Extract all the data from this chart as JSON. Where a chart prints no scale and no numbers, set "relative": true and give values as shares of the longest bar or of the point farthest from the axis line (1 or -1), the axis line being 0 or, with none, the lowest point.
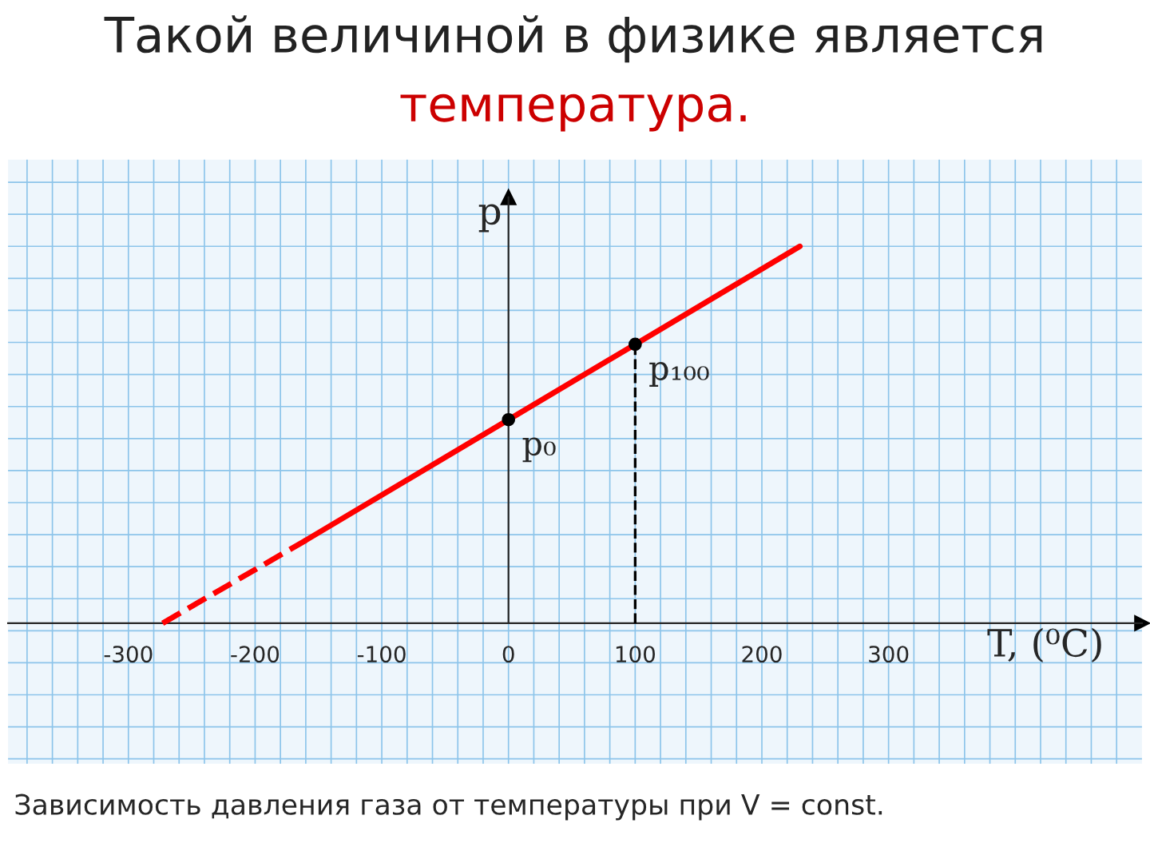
{
  "chart_data": {
    "type": "line",
    "title": "Такой величиной в физике является",
    "subtitle": "температура.",
    "xlabel": "T, (⁰C)",
    "ylabel": "p",
    "relative": true,
    "xlim": [
      -395,
      500
    ],
    "xticks": [
      -300,
      -200,
      -100,
      0,
      100,
      200,
      300
    ],
    "tick_labels": "x",
    "grid": true,
    "series": [
      {
        "type": "line",
        "x": [
          -273,
          -160
        ],
        "values": [
          0,
          0.22
        ],
        "color": "#ff0000",
        "line_style": "dashed"
      },
      {
        "type": "line",
        "x": [
          -160,
          0,
          100,
          230
        ],
        "values": [
          0.22,
          0.54,
          0.74,
          1
        ],
        "color": "#ff0000",
        "line_style": "solid"
      },
      {
        "type": "line",
        "x": [
          100,
          100
        ],
        "values": [
          0,
          0.74
        ],
        "color": "#000000",
        "line_style": "dashed"
      },
      {
        "type": "scatter",
        "x": [
          0,
          100
        ],
        "values": [
          0.54,
          0.74
        ],
        "color": "#000000",
        "marker": "circle"
      }
    ],
    "annotations": [
      {
        "text": "p₀",
        "x": 0,
        "y": 0.54
      },
      {
        "text": "p₁₀₀",
        "x": 100,
        "y": 0.74
      },
      "Зависимость давления газа от температуры при V = const."
    ]
  }
}
